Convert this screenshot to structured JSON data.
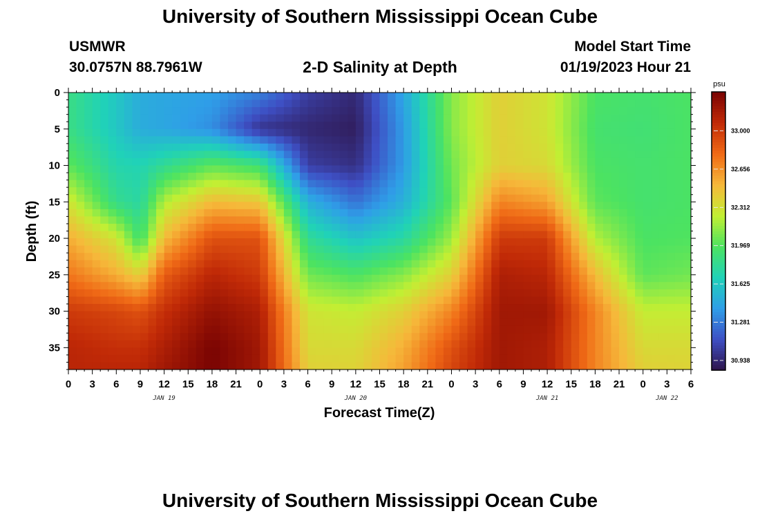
{
  "header": {
    "title": "University of Southern Mississippi Ocean Cube",
    "station": "USMWR",
    "coords": "30.0757N  88.7961W",
    "subtitle": "2-D Salinity at Depth",
    "start_label": "Model Start Time",
    "start_value": "01/19/2023 Hour 21"
  },
  "footer": {
    "title": "University of Southern Mississippi Ocean Cube"
  },
  "colors": {
    "colormap": [
      "#2e1449",
      "#3e4fc4",
      "#2f9ee8",
      "#20d2b8",
      "#4ce361",
      "#c2ef33",
      "#f6b83a",
      "#f06a16",
      "#c12a07",
      "#7a0403"
    ]
  },
  "chart_data": {
    "type": "heatmap",
    "title": "2-D Salinity at Depth",
    "xlabel": "Forecast Time(Z)",
    "ylabel": "Depth (ft)",
    "x_unit": "forecast hour",
    "x_range": [
      0,
      78
    ],
    "x_tick_labels": [
      "0",
      "3",
      "6",
      "9",
      "12",
      "15",
      "18",
      "21",
      "0",
      "3",
      "6",
      "9",
      "12",
      "15",
      "18",
      "21",
      "0",
      "3",
      "6",
      "9",
      "12",
      "15",
      "18",
      "21",
      "0",
      "3",
      "6"
    ],
    "date_labels": [
      {
        "label": "JAN 19",
        "hour": 12
      },
      {
        "label": "JAN 20",
        "hour": 36
      },
      {
        "label": "JAN 21",
        "hour": 60
      },
      {
        "label": "JAN 22",
        "hour": 75
      }
    ],
    "ylim": [
      0,
      38
    ],
    "y_ticks": [
      0,
      5,
      10,
      15,
      20,
      25,
      30,
      35
    ],
    "colorbar": {
      "unit": "psu",
      "range": [
        30.85,
        33.35
      ],
      "tick_values": [
        33.0,
        32.656,
        32.312,
        31.969,
        31.625,
        31.281,
        30.938
      ],
      "tick_labels": [
        "33.000",
        "32.656",
        "32.312",
        "31.969",
        "31.625",
        "31.281",
        "30.938"
      ]
    },
    "depths": [
      0,
      5,
      10,
      15,
      20,
      25,
      30,
      35,
      38
    ],
    "hours": [
      0,
      6,
      9,
      12,
      18,
      24,
      30,
      36,
      42,
      48,
      54,
      60,
      66,
      72,
      78
    ],
    "salinity": [
      [
        31.85,
        31.62,
        31.48,
        31.45,
        31.42,
        31.3,
        31.05,
        30.95,
        31.45,
        32.1,
        32.4,
        32.3,
        31.95,
        31.92,
        31.95
      ],
      [
        31.85,
        31.62,
        31.48,
        31.45,
        31.35,
        31.0,
        30.94,
        30.9,
        31.4,
        32.1,
        32.4,
        32.3,
        31.92,
        31.9,
        31.95
      ],
      [
        32.0,
        31.72,
        31.7,
        31.8,
        32.0,
        31.9,
        31.05,
        30.98,
        31.4,
        32.05,
        32.4,
        32.35,
        31.95,
        31.92,
        31.95
      ],
      [
        32.3,
        31.82,
        31.75,
        32.2,
        32.5,
        32.45,
        31.5,
        31.25,
        31.5,
        32.0,
        32.7,
        32.6,
        32.0,
        31.92,
        31.95
      ],
      [
        32.55,
        32.3,
        31.9,
        32.5,
        32.9,
        32.9,
        31.8,
        31.6,
        31.75,
        32.15,
        33.0,
        33.0,
        32.2,
        31.95,
        31.97
      ],
      [
        32.75,
        32.55,
        32.4,
        32.85,
        33.1,
        33.0,
        32.05,
        31.95,
        32.1,
        32.4,
        33.15,
        33.1,
        32.5,
        32.0,
        32.05
      ],
      [
        33.0,
        32.95,
        32.9,
        33.05,
        33.25,
        33.15,
        32.3,
        32.25,
        32.4,
        32.7,
        33.2,
        33.2,
        32.7,
        32.25,
        32.25
      ],
      [
        33.1,
        33.05,
        33.05,
        33.15,
        33.35,
        33.2,
        32.35,
        32.35,
        32.55,
        32.9,
        33.2,
        33.15,
        32.7,
        32.35,
        32.35
      ],
      [
        33.1,
        33.1,
        33.1,
        33.2,
        33.35,
        33.2,
        32.4,
        32.38,
        32.6,
        32.95,
        33.2,
        33.15,
        32.7,
        32.4,
        32.38
      ]
    ]
  }
}
